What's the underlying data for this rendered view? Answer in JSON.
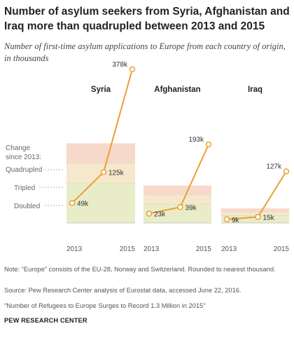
{
  "title": "Number of asylum seekers from Syria, Afghanistan and Iraq more than quadrupled between 2013 and 2015",
  "subtitle": "Number of first-time asylum applications to Europe from each country of origin, in thousands",
  "legend": {
    "heading_line1": "Change",
    "heading_line2": "since 2013:",
    "quadrupled": "Quadrupled",
    "tripled": "Tripled",
    "doubled": "Doubled"
  },
  "note": "Note: “Europe” consists of the EU-28, Norway and Switzerland. Rounded to nearest thousand.",
  "source": "Source: Pew Research Center analysis of Eurostat data, accessed June 22, 2016.",
  "publication": "“Number of Refugees to Europe Surges to Record 1.3 Million in 2015”",
  "brand": "PEW RESEARCH CENTER",
  "colors": {
    "line": "#eb9f36",
    "point_fill": "#ffffff",
    "band_doubled": "#e8edc8",
    "band_tripled": "#f6e8cc",
    "band_quadrupled": "#f7d9cc",
    "band_border": "#d9c9a8"
  },
  "chart_data": {
    "type": "line",
    "x": [
      "2013",
      "2014",
      "2015"
    ],
    "ylim": [
      0,
      400
    ],
    "series": [
      {
        "name": "Syria",
        "values": [
          49,
          125,
          378
        ],
        "labels": [
          "49k",
          "125k",
          "378k"
        ]
      },
      {
        "name": "Afghanistan",
        "values": [
          23,
          39,
          193
        ],
        "labels": [
          "23k",
          "39k",
          "193k"
        ]
      },
      {
        "name": "Iraq",
        "values": [
          9,
          15,
          127
        ],
        "labels": [
          "9k",
          "15k",
          "127k"
        ]
      }
    ],
    "x_tick_labels": [
      "2013",
      "2015"
    ],
    "reference_bands": [
      "doubled",
      "tripled",
      "quadrupled"
    ]
  }
}
